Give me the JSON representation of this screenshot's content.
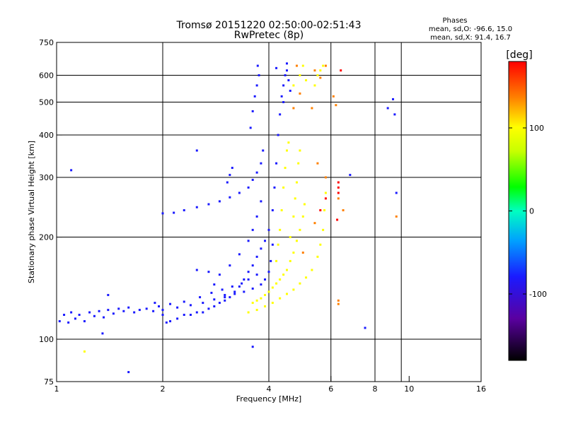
{
  "chart_data": {
    "type": "scatter",
    "title": "Tromsø 20151220 02:50:00-02:51:43",
    "subtitle": "RwPretec (8p)",
    "xlabel": "Frequency [MHz]",
    "ylabel": "Stationary phase Virtual Height [km]",
    "xscale": "log",
    "yscale": "log",
    "xlim": [
      1,
      16
    ],
    "ylim": [
      75,
      750
    ],
    "xticks": [
      1,
      2,
      4,
      6,
      8,
      10,
      16
    ],
    "xtick_labels": [
      "1",
      "2",
      "4",
      "6",
      "8",
      "10",
      "16"
    ],
    "xgrid_lines": [
      2,
      4,
      6,
      8,
      9.5
    ],
    "yticks": [
      75,
      100,
      200,
      300,
      400,
      500,
      600,
      750
    ],
    "ytick_labels": [
      "75",
      "100",
      "200",
      "300",
      "400",
      "500",
      "600",
      "750"
    ],
    "ygrid_lines": [
      100,
      200,
      300,
      400,
      500,
      600
    ],
    "grid": true,
    "stats": {
      "title": "Phases",
      "line_o": "mean, sd,O: -96.6, 15.0",
      "line_x": "mean, sd,X:  91.4, 16.7"
    },
    "colorbar": {
      "label": "[deg]",
      "range": [
        -180,
        180
      ],
      "ticks": [
        100,
        0,
        -100
      ],
      "tick_labels": [
        "100",
        "0",
        "-100"
      ],
      "placement": "right"
    },
    "series": [
      {
        "phase": -100,
        "points": [
          [
            1.02,
            113
          ],
          [
            1.05,
            118
          ],
          [
            1.08,
            112
          ],
          [
            1.1,
            120
          ],
          [
            1.13,
            115
          ],
          [
            1.16,
            118
          ],
          [
            1.2,
            113
          ],
          [
            1.24,
            120
          ],
          [
            1.28,
            117
          ],
          [
            1.32,
            121
          ],
          [
            1.36,
            116
          ],
          [
            1.4,
            122
          ],
          [
            1.45,
            119
          ],
          [
            1.5,
            123
          ],
          [
            1.55,
            121
          ],
          [
            1.6,
            124
          ],
          [
            1.66,
            120
          ],
          [
            1.72,
            122
          ],
          [
            1.8,
            123
          ],
          [
            1.88,
            121
          ],
          [
            1.95,
            125
          ],
          [
            2.0,
            118
          ],
          [
            2.05,
            112
          ],
          [
            2.1,
            113
          ],
          [
            2.2,
            115
          ],
          [
            2.3,
            118
          ],
          [
            2.4,
            118
          ],
          [
            2.5,
            120
          ],
          [
            2.6,
            120
          ],
          [
            2.7,
            123
          ],
          [
            2.8,
            125
          ],
          [
            2.9,
            128
          ],
          [
            3.0,
            130
          ],
          [
            3.1,
            133
          ],
          [
            3.2,
            138
          ],
          [
            3.3,
            143
          ],
          [
            3.4,
            150
          ],
          [
            3.5,
            158
          ],
          [
            3.6,
            165
          ],
          [
            3.7,
            175
          ],
          [
            3.8,
            185
          ],
          [
            3.9,
            195
          ],
          [
            4.0,
            210
          ],
          [
            4.1,
            240
          ],
          [
            4.15,
            280
          ],
          [
            4.2,
            330
          ],
          [
            4.25,
            400
          ],
          [
            4.3,
            460
          ],
          [
            4.35,
            520
          ],
          [
            4.4,
            560
          ],
          [
            4.45,
            600
          ],
          [
            4.5,
            620
          ],
          [
            4.55,
            580
          ],
          [
            4.6,
            540
          ],
          [
            4.4,
            500
          ],
          [
            4.5,
            650
          ],
          [
            2.0,
            122
          ],
          [
            2.2,
            124
          ],
          [
            2.4,
            126
          ],
          [
            2.6,
            128
          ],
          [
            2.8,
            131
          ],
          [
            3.0,
            133
          ],
          [
            3.2,
            136
          ],
          [
            3.4,
            138
          ],
          [
            3.6,
            141
          ],
          [
            3.8,
            145
          ],
          [
            3.9,
            150
          ],
          [
            4.0,
            158
          ],
          [
            4.05,
            170
          ],
          [
            4.1,
            190
          ],
          [
            2.5,
            160
          ],
          [
            2.7,
            158
          ],
          [
            2.9,
            155
          ],
          [
            3.1,
            165
          ],
          [
            3.3,
            178
          ],
          [
            3.5,
            195
          ],
          [
            3.6,
            210
          ],
          [
            3.7,
            230
          ],
          [
            3.8,
            255
          ],
          [
            2.0,
            235
          ],
          [
            2.15,
            236
          ],
          [
            2.3,
            240
          ],
          [
            2.5,
            245
          ],
          [
            2.7,
            250
          ],
          [
            2.9,
            255
          ],
          [
            3.1,
            262
          ],
          [
            3.3,
            270
          ],
          [
            3.5,
            280
          ],
          [
            3.6,
            295
          ],
          [
            3.7,
            310
          ],
          [
            3.8,
            330
          ],
          [
            3.85,
            360
          ],
          [
            3.55,
            420
          ],
          [
            3.6,
            470
          ],
          [
            3.65,
            520
          ],
          [
            3.7,
            560
          ],
          [
            3.75,
            600
          ],
          [
            3.72,
            640
          ],
          [
            3.05,
            290
          ],
          [
            3.1,
            305
          ],
          [
            3.15,
            320
          ],
          [
            2.5,
            360
          ],
          [
            1.35,
            104
          ],
          [
            1.1,
            315
          ],
          [
            1.6,
            80
          ],
          [
            1.9,
            128
          ],
          [
            3.6,
            95
          ],
          [
            9.0,
            510
          ],
          [
            8.7,
            480
          ],
          [
            9.1,
            460
          ],
          [
            7.5,
            108
          ],
          [
            6.8,
            305
          ],
          [
            9.2,
            270
          ]
        ]
      },
      {
        "phase": -70,
        "points": [
          [
            2.1,
            127
          ],
          [
            2.3,
            129
          ],
          [
            2.55,
            133
          ],
          [
            2.75,
            137
          ],
          [
            2.95,
            140
          ],
          [
            3.15,
            143
          ],
          [
            3.35,
            146
          ],
          [
            3.5,
            150
          ],
          [
            3.7,
            155
          ],
          [
            4.2,
            630
          ],
          [
            1.4,
            135
          ],
          [
            2.8,
            145
          ],
          [
            3.0,
            135
          ]
        ]
      },
      {
        "phase": 100,
        "points": [
          [
            3.6,
            128
          ],
          [
            3.7,
            130
          ],
          [
            3.8,
            132
          ],
          [
            3.9,
            135
          ],
          [
            4.0,
            138
          ],
          [
            4.1,
            142
          ],
          [
            4.2,
            146
          ],
          [
            4.3,
            150
          ],
          [
            4.4,
            155
          ],
          [
            4.5,
            160
          ],
          [
            4.6,
            170
          ],
          [
            4.7,
            180
          ],
          [
            4.8,
            195
          ],
          [
            4.9,
            210
          ],
          [
            5.0,
            230
          ],
          [
            5.05,
            250
          ],
          [
            4.2,
            170
          ],
          [
            4.25,
            190
          ],
          [
            4.3,
            210
          ],
          [
            4.35,
            240
          ],
          [
            4.4,
            280
          ],
          [
            4.45,
            320
          ],
          [
            4.5,
            360
          ],
          [
            4.55,
            380
          ],
          [
            3.5,
            120
          ],
          [
            3.7,
            122
          ],
          [
            3.9,
            125
          ],
          [
            4.1,
            128
          ],
          [
            4.3,
            132
          ],
          [
            4.5,
            136
          ],
          [
            4.7,
            140
          ],
          [
            4.9,
            146
          ],
          [
            5.1,
            152
          ],
          [
            5.3,
            160
          ],
          [
            5.5,
            175
          ],
          [
            5.6,
            190
          ],
          [
            5.7,
            210
          ],
          [
            5.75,
            240
          ],
          [
            5.8,
            270
          ],
          [
            4.6,
            200
          ],
          [
            4.7,
            230
          ],
          [
            4.75,
            260
          ],
          [
            4.8,
            290
          ],
          [
            4.85,
            330
          ],
          [
            4.9,
            360
          ],
          [
            4.7,
            560
          ],
          [
            4.9,
            600
          ],
          [
            5.0,
            640
          ],
          [
            5.1,
            580
          ],
          [
            5.4,
            560
          ],
          [
            5.5,
            600
          ],
          [
            5.6,
            620
          ],
          [
            5.7,
            640
          ],
          [
            1.2,
            92
          ]
        ]
      },
      {
        "phase": 140,
        "points": [
          [
            4.9,
            530
          ],
          [
            4.8,
            640
          ],
          [
            5.6,
            590
          ],
          [
            5.8,
            640
          ],
          [
            4.7,
            480
          ],
          [
            5.3,
            480
          ],
          [
            5.0,
            180
          ],
          [
            5.4,
            220
          ],
          [
            6.3,
            260
          ],
          [
            6.5,
            240
          ],
          [
            6.3,
            130
          ],
          [
            6.3,
            127
          ],
          [
            6.2,
            490
          ],
          [
            5.5,
            330
          ],
          [
            5.8,
            300
          ],
          [
            6.1,
            520
          ],
          [
            5.4,
            620
          ],
          [
            9.2,
            230
          ]
        ]
      },
      {
        "phase": 170,
        "points": [
          [
            6.3,
            290
          ],
          [
            6.3,
            270
          ],
          [
            6.3,
            280
          ],
          [
            5.6,
            240
          ],
          [
            5.8,
            260
          ],
          [
            6.25,
            225
          ],
          [
            6.4,
            620
          ]
        ]
      }
    ]
  }
}
